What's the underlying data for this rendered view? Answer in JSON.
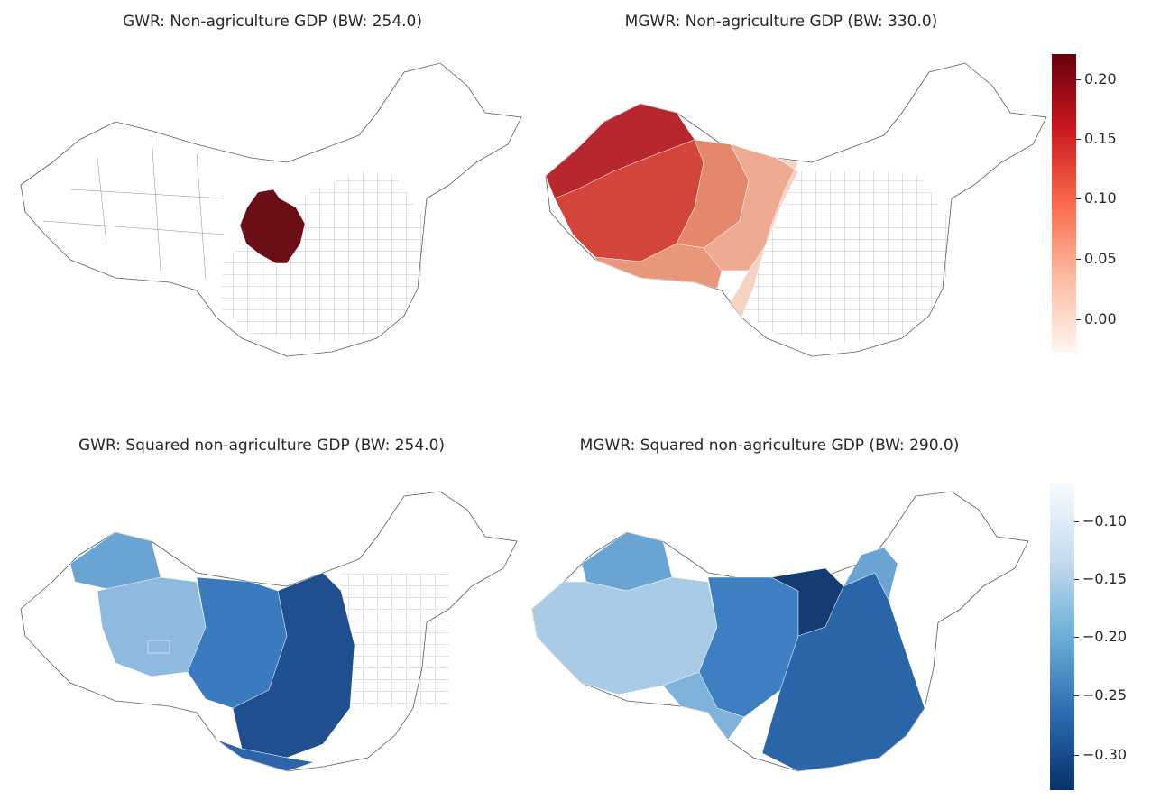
{
  "panels": [
    {
      "id": "gwr-nonag",
      "title": "GWR: Non-agriculture GDP (BW: 254.0)"
    },
    {
      "id": "mgwr-nonag",
      "title": "MGWR: Non-agriculture GDP (BW: 330.0)"
    },
    {
      "id": "gwr-sq",
      "title": "GWR: Squared non-agriculture GDP (BW: 254.0)"
    },
    {
      "id": "mgwr-sq",
      "title": "MGWR: Squared non-agriculture GDP (BW: 290.0)"
    }
  ],
  "colorbars": [
    {
      "id": "reds",
      "colormap": "Reds",
      "range": [
        -0.03,
        0.22
      ],
      "ticks": [
        "0.20",
        "0.15",
        "0.10",
        "0.05",
        "0.00"
      ],
      "tick_values": [
        0.2,
        0.15,
        0.1,
        0.05,
        0.0
      ],
      "colors": [
        "#fff5f0",
        "#fcbba1",
        "#fb6a4a",
        "#cb181d",
        "#67000d"
      ]
    },
    {
      "id": "blues",
      "colormap": "Blues_r",
      "range": [
        -0.33,
        -0.065
      ],
      "ticks": [
        "−0.10",
        "−0.15",
        "−0.20",
        "−0.25",
        "−0.30"
      ],
      "tick_values": [
        -0.1,
        -0.15,
        -0.2,
        -0.25,
        -0.3
      ],
      "colors": [
        "#08306b",
        "#2b6cb0",
        "#6baed6",
        "#c6dbef",
        "#f7fbff"
      ]
    }
  ],
  "colors": {
    "outline": "#5a5a5a",
    "empty_fill": "#ffffff"
  }
}
